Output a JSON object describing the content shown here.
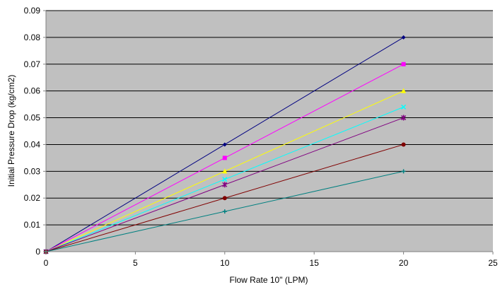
{
  "chart_data": {
    "type": "line",
    "title": "",
    "xlabel": "Flow Rate 10\" (LPM)",
    "ylabel": "Initial Pressure Drop (kg/cm2)",
    "xlim": [
      0,
      25
    ],
    "ylim": [
      0,
      0.09
    ],
    "xticks": [
      "0",
      "5",
      "10",
      "15",
      "20",
      "25"
    ],
    "yticks": [
      "0",
      "0.01",
      "0.02",
      "0.03",
      "0.04",
      "0.05",
      "0.06",
      "0.07",
      "0.08",
      "0.09"
    ],
    "grid": "horizontal",
    "plot_background": "#c0c0c0",
    "x": [
      0,
      10,
      20
    ],
    "series": [
      {
        "values": [
          0,
          0.04,
          0.08
        ],
        "color": "#000080",
        "marker": "diamond"
      },
      {
        "values": [
          0,
          0.035,
          0.07
        ],
        "color": "#ff00ff",
        "marker": "square"
      },
      {
        "values": [
          0,
          0.03,
          0.06
        ],
        "color": "#ffff00",
        "marker": "triangle"
      },
      {
        "values": [
          0,
          0.027,
          0.054
        ],
        "color": "#00ffff",
        "marker": "x"
      },
      {
        "values": [
          0,
          0.025,
          0.05
        ],
        "color": "#800080",
        "marker": "star"
      },
      {
        "values": [
          0,
          0.02,
          0.04
        ],
        "color": "#800000",
        "marker": "circle"
      },
      {
        "values": [
          0,
          0.015,
          0.03
        ],
        "color": "#008080",
        "marker": "plus"
      }
    ]
  }
}
